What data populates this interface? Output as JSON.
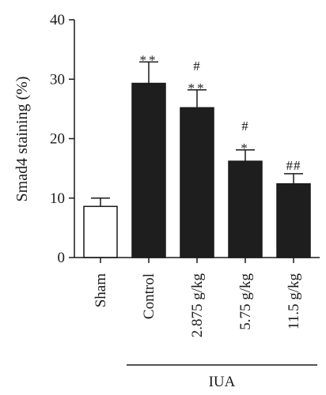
{
  "chart_data": {
    "type": "bar",
    "ylabel": "Smad4 staining (%)",
    "ylim": [
      0,
      40
    ],
    "yticks": [
      0,
      10,
      20,
      30,
      40
    ],
    "categories": [
      "Sham",
      "Control",
      "2.875 g/kg",
      "5.75 g/kg",
      "11.5 g/kg"
    ],
    "values": [
      8.6,
      29.3,
      25.2,
      16.2,
      12.4
    ],
    "errors": [
      1.4,
      3.6,
      3.0,
      1.9,
      1.7
    ],
    "significance": [
      [],
      [
        "**"
      ],
      [
        "#",
        "**"
      ],
      [
        "#",
        "*"
      ],
      [
        "##"
      ]
    ],
    "fill_colors": [
      "#ffffff",
      "#1e1e1e",
      "#1e1e1e",
      "#1e1e1e",
      "#1e1e1e"
    ],
    "group_label": "IUA",
    "group_span": [
      1,
      4
    ]
  }
}
